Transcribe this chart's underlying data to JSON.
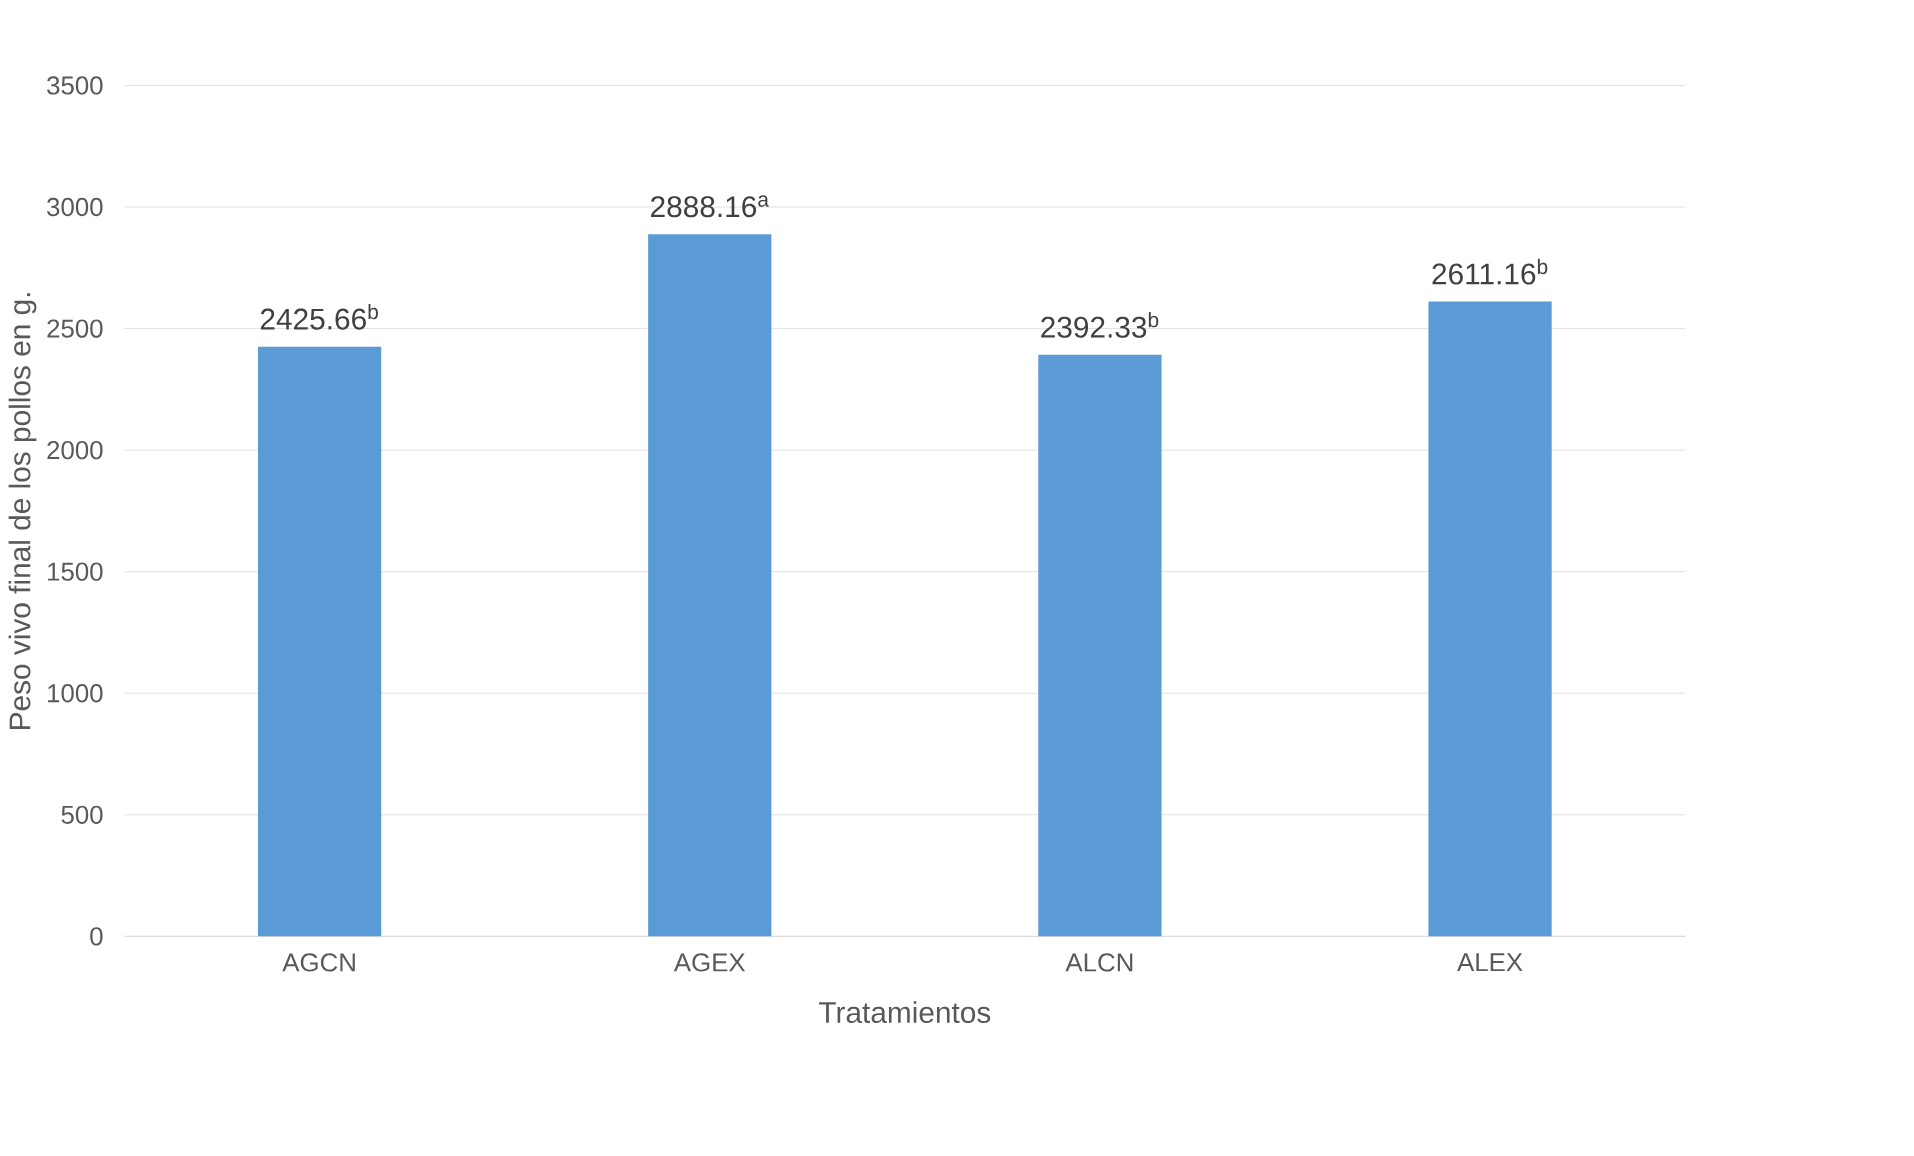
{
  "chart_data": {
    "type": "bar",
    "xlabel": "Tratamientos",
    "ylabel": "Peso vivo final de los pollos en g.",
    "categories": [
      "AGCN",
      "AGEX",
      "ALCN",
      "ALEX"
    ],
    "values": [
      2425.66,
      2888.16,
      2392.33,
      2611.16
    ],
    "value_labels": [
      "2425.66$^{b}$",
      "2888.16$^{a}$",
      "2392.33$^{b}$",
      "2611.16$^{b}$"
    ],
    "color": "#5b9bd5",
    "ylim": [
      0,
      3500
    ],
    "yticks": [
      0,
      500,
      1000,
      1500,
      2000,
      2500,
      3000,
      3500
    ],
    "grid": "y"
  }
}
